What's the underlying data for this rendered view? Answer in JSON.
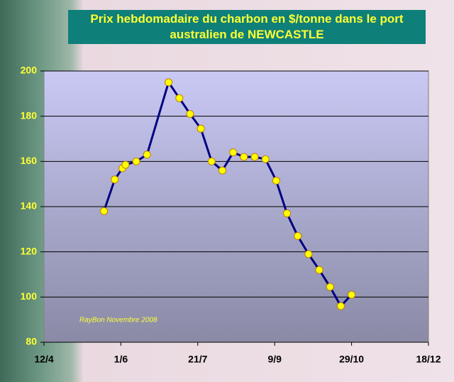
{
  "chart_data": {
    "type": "line",
    "title": "Prix hebdomadaire du charbon en $/tonne dans le port australien de NEWCASTLE",
    "annotation": "RayBon Novembre 2008",
    "x": [
      "21/5",
      "28/5",
      "2/6",
      "4/6",
      "11/6",
      "18/6",
      "2/7",
      "9/7",
      "16/7",
      "23/7",
      "30/7",
      "6/8",
      "13/8",
      "20/8",
      "27/8",
      "3/9",
      "10/9",
      "17/9",
      "24/9",
      "1/10",
      "8/10",
      "15/10",
      "22/10",
      "29/10"
    ],
    "series": [
      {
        "color": "#000080",
        "values": [
          138,
          152,
          157,
          158.5,
          160,
          163,
          195,
          188,
          181,
          174.5,
          160,
          156,
          164,
          162,
          162,
          161,
          151.5,
          137,
          127,
          119,
          112,
          104.5,
          96,
          101
        ]
      }
    ],
    "xlim": [
      "12/4",
      "18/12"
    ],
    "xticks": [
      "12/4",
      "1/6",
      "21/7",
      "9/9",
      "29/10",
      "18/12"
    ],
    "ylim": [
      80,
      200
    ],
    "yticks": [
      80,
      100,
      120,
      140,
      160,
      180,
      200
    ],
    "grid": true
  }
}
